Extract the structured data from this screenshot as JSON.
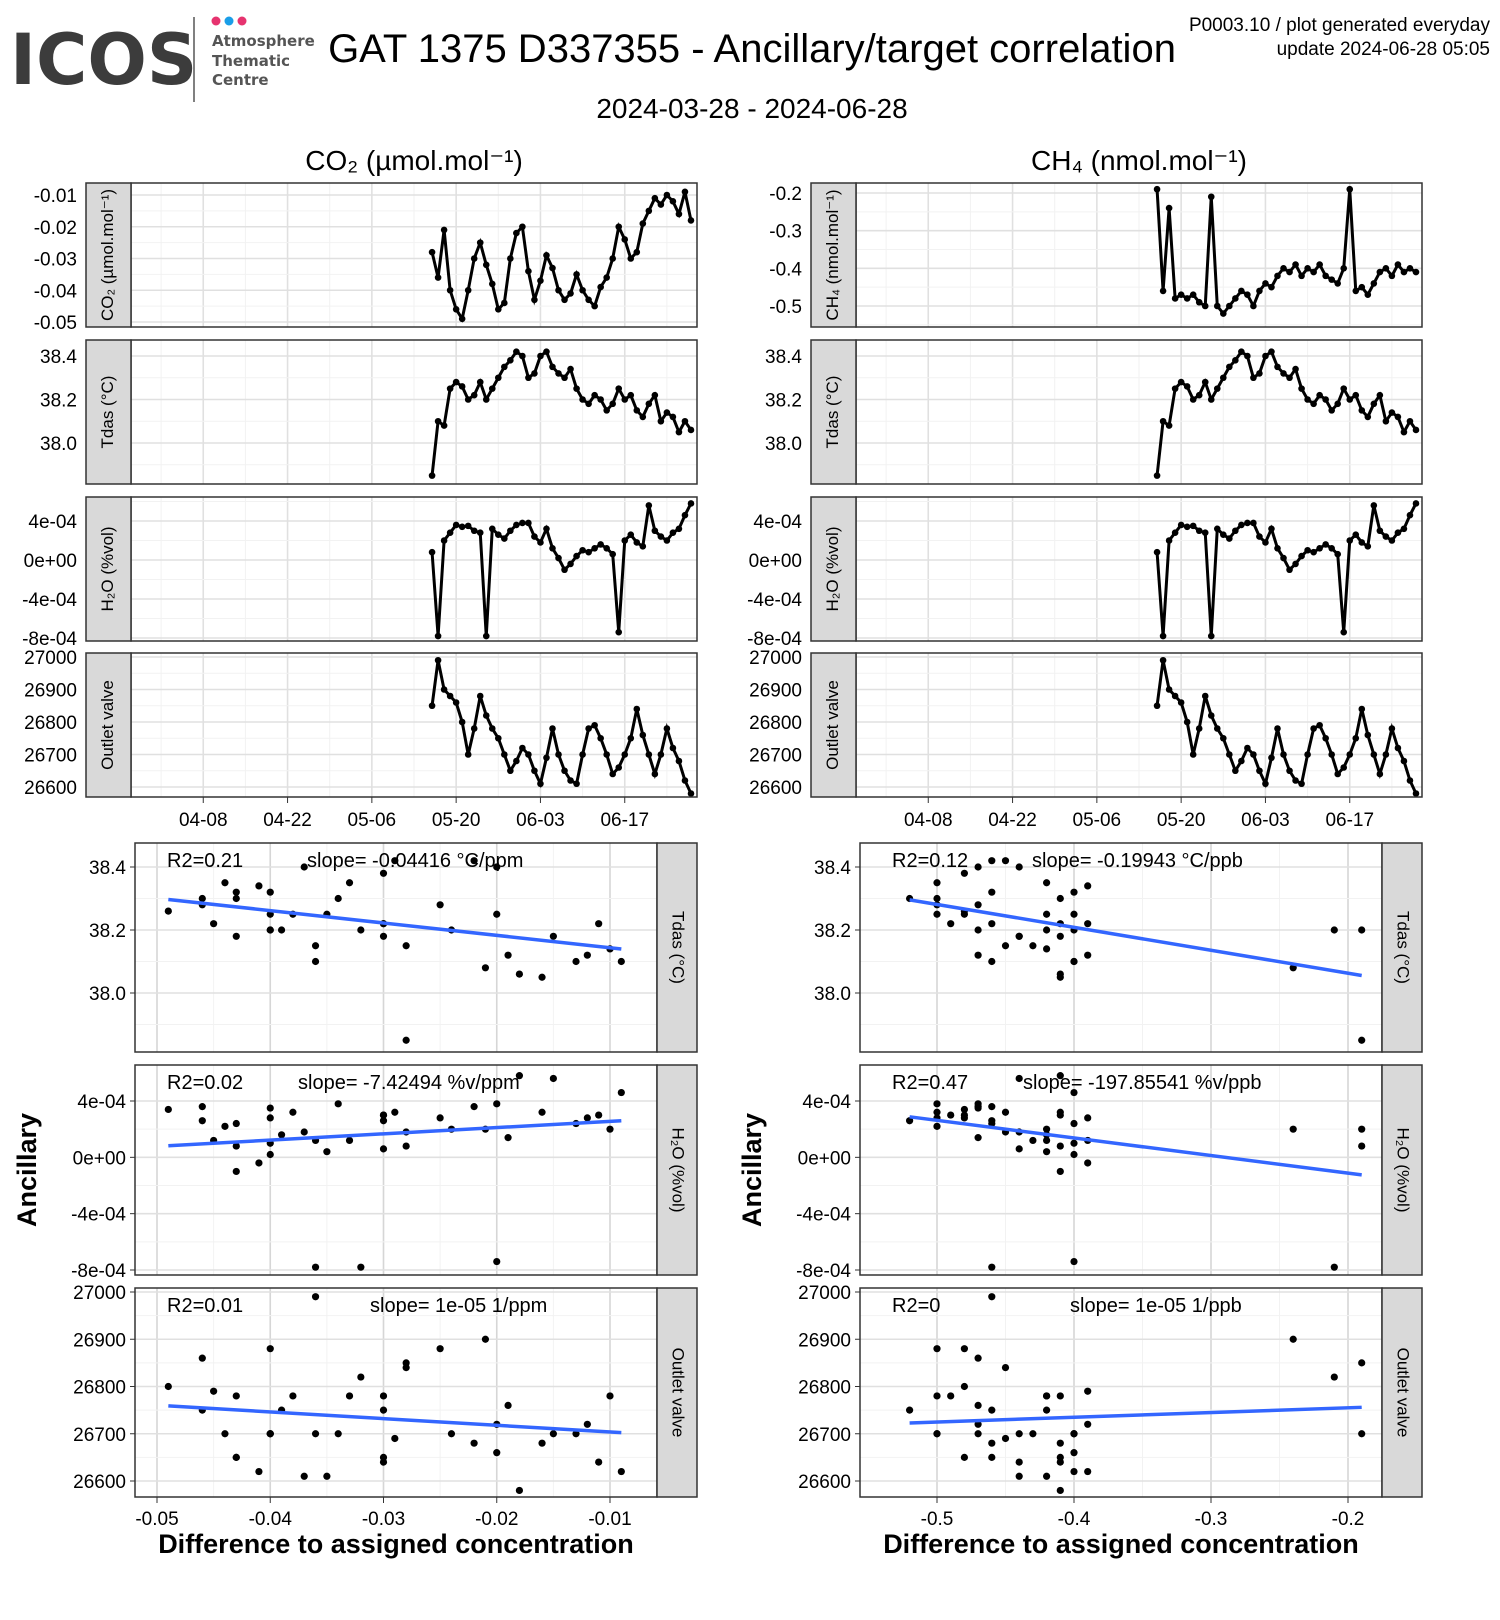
{
  "header": {
    "logo_text": "ICOS",
    "logo_sub": [
      "Atmosphere",
      "Thematic",
      "Centre"
    ],
    "logo_dot_colors": [
      "#e6336f",
      "#1a9ee8",
      "#e6336f"
    ],
    "title": "GAT 1375 D337355 - Ancillary/target correlation",
    "date_range": "2024-03-28 - 2024-06-28",
    "info_line1": "P0003.10 / plot generated everyday",
    "info_line2": "update  2024-06-28 05:05"
  },
  "chart_data": {
    "type": "line+scatter",
    "title": "GAT 1375 D337355 - Ancillary/target correlation",
    "subtitle": "2024-03-28 - 2024-06-28",
    "line_color": "#000000",
    "fit_color": "#3366ff",
    "time_axis": {
      "range": [
        "2024-03-27",
        "2024-06-29"
      ],
      "ticks": [
        "2024-04-08",
        "2024-04-22",
        "2024-05-06",
        "2024-05-20",
        "2024-06-03",
        "2024-06-17"
      ],
      "tick_labels": [
        "04-08",
        "04-22",
        "05-06",
        "05-20",
        "06-03",
        "06-17"
      ]
    },
    "series_start": "2024-05-16",
    "series_step_days": 1,
    "series": {
      "co2": [
        -0.028,
        -0.036,
        -0.021,
        -0.04,
        -0.046,
        -0.049,
        -0.04,
        -0.03,
        -0.025,
        -0.032,
        -0.038,
        -0.046,
        -0.044,
        -0.03,
        -0.022,
        -0.02,
        -0.034,
        -0.043,
        -0.037,
        -0.029,
        -0.033,
        -0.04,
        -0.043,
        -0.041,
        -0.035,
        -0.04,
        -0.043,
        -0.045,
        -0.039,
        -0.036,
        -0.03,
        -0.02,
        -0.024,
        -0.03,
        -0.028,
        -0.019,
        -0.015,
        -0.011,
        -0.013,
        -0.01,
        -0.012,
        -0.016,
        -0.009,
        -0.018
      ],
      "ch4": [
        -0.19,
        -0.46,
        -0.24,
        -0.48,
        -0.47,
        -0.48,
        -0.47,
        -0.49,
        -0.5,
        -0.21,
        -0.5,
        -0.52,
        -0.5,
        -0.48,
        -0.46,
        -0.47,
        -0.5,
        -0.46,
        -0.44,
        -0.45,
        -0.42,
        -0.4,
        -0.41,
        -0.39,
        -0.42,
        -0.4,
        -0.41,
        -0.39,
        -0.42,
        -0.43,
        -0.44,
        -0.4,
        -0.19,
        -0.46,
        -0.45,
        -0.47,
        -0.44,
        -0.41,
        -0.4,
        -0.42,
        -0.39,
        -0.41,
        -0.4,
        -0.41
      ],
      "tdas": [
        37.85,
        38.1,
        38.08,
        38.25,
        38.28,
        38.26,
        38.2,
        38.22,
        38.28,
        38.2,
        38.25,
        38.3,
        38.35,
        38.38,
        38.42,
        38.4,
        38.3,
        38.32,
        38.4,
        38.42,
        38.35,
        38.32,
        38.3,
        38.34,
        38.25,
        38.2,
        38.18,
        38.22,
        38.2,
        38.15,
        38.18,
        38.25,
        38.2,
        38.22,
        38.15,
        38.12,
        38.18,
        38.22,
        38.1,
        38.14,
        38.12,
        38.05,
        38.1,
        38.06
      ],
      "h2o": [
        8e-05,
        -0.00078,
        0.0002,
        0.00028,
        0.00036,
        0.00034,
        0.00035,
        0.0003,
        0.00028,
        -0.00078,
        0.00032,
        0.00026,
        0.00022,
        0.0003,
        0.00036,
        0.00038,
        0.00038,
        0.00024,
        0.00018,
        0.00032,
        0.00012,
        2e-05,
        -0.0001,
        -4e-05,
        4e-05,
        0.0001,
        8e-05,
        0.00012,
        0.00016,
        0.00012,
        6e-05,
        -0.00074,
        0.0002,
        0.00026,
        0.00018,
        0.00014,
        0.00056,
        0.0003,
        0.00024,
        0.0002,
        0.00028,
        0.00032,
        0.00046,
        0.00058
      ],
      "outlet": [
        26850,
        26990,
        26900,
        26880,
        26860,
        26800,
        26700,
        26780,
        26880,
        26820,
        26780,
        26750,
        26700,
        26650,
        26680,
        26720,
        26700,
        26650,
        26610,
        26690,
        26780,
        26700,
        26650,
        26620,
        26610,
        26700,
        26780,
        26790,
        26750,
        26700,
        26640,
        26660,
        26700,
        26750,
        26840,
        26760,
        26700,
        26640,
        26700,
        26780,
        26720,
        26680,
        26620,
        26580
      ]
    },
    "columns": [
      {
        "title": "CO₂ (µmol.mol⁻¹)",
        "target": "co2",
        "xlabel": "Difference to assigned concentration",
        "ylabel": "Ancillary",
        "x_ticks": [
          -0.05,
          -0.04,
          -0.03,
          -0.02,
          -0.01
        ],
        "x_tick_labels": [
          "-0.05",
          "-0.04",
          "-0.03",
          "-0.02",
          "-0.01"
        ],
        "time_panels": [
          {
            "strip": "CO₂ (µmol.mol⁻¹)",
            "var": "co2",
            "ticks": [
              -0.01,
              -0.02,
              -0.03,
              -0.04,
              -0.05
            ],
            "tick_labels": [
              "-0.01",
              "-0.02",
              "-0.03",
              "-0.04",
              "-0.05"
            ]
          },
          {
            "strip": "Tdas (°C)",
            "var": "tdas",
            "ticks": [
              38.4,
              38.2,
              38.0
            ],
            "tick_labels": [
              "38.4",
              "38.2",
              "38.0"
            ]
          },
          {
            "strip": "H₂O (%vol)",
            "var": "h2o",
            "ticks": [
              0.0004,
              0,
              -0.0004,
              -0.0008
            ],
            "tick_labels": [
              "4e-04",
              "0e+00",
              "-4e-04",
              "-8e-04"
            ]
          },
          {
            "strip": "Outlet valve",
            "var": "outlet",
            "ticks": [
              27000,
              26900,
              26800,
              26700,
              26600
            ],
            "tick_labels": [
              "27000",
              "26900",
              "26800",
              "26700",
              "26600"
            ]
          }
        ],
        "scatter_panels": [
          {
            "strip": "Tdas (°C)",
            "var": "tdas",
            "r2": "R2=0.21",
            "slope": "slope= -0.04416 °C/ppm",
            "ticks": [
              38.4,
              38.2,
              38.0
            ],
            "tick_labels": [
              "38.4",
              "38.2",
              "38.0"
            ]
          },
          {
            "strip": "H₂O (%vol)",
            "var": "h2o",
            "r2": "R2=0.02",
            "slope": "slope= -7.42494 %v/ppm",
            "ticks": [
              0.0004,
              0,
              -0.0004,
              -0.0008
            ],
            "tick_labels": [
              "4e-04",
              "0e+00",
              "-4e-04",
              "-8e-04"
            ]
          },
          {
            "strip": "Outlet valve",
            "var": "outlet",
            "r2": "R2=0.01",
            "slope": "slope= 1e-05 1/ppm",
            "ticks": [
              27000,
              26900,
              26800,
              26700,
              26600
            ],
            "tick_labels": [
              "27000",
              "26900",
              "26800",
              "26700",
              "26600"
            ]
          }
        ]
      },
      {
        "title": "CH₄ (nmol.mol⁻¹)",
        "target": "ch4",
        "xlabel": "Difference to assigned concentration",
        "ylabel": "Ancillary",
        "x_ticks": [
          -0.5,
          -0.4,
          -0.3,
          -0.2
        ],
        "x_tick_labels": [
          "-0.5",
          "-0.4",
          "-0.3",
          "-0.2"
        ],
        "time_panels": [
          {
            "strip": "CH₄ (nmol.mol⁻¹)",
            "var": "ch4",
            "ticks": [
              -0.2,
              -0.3,
              -0.4,
              -0.5
            ],
            "tick_labels": [
              "-0.2",
              "-0.3",
              "-0.4",
              "-0.5"
            ]
          },
          {
            "strip": "Tdas (°C)",
            "var": "tdas",
            "ticks": [
              38.4,
              38.2,
              38.0
            ],
            "tick_labels": [
              "38.4",
              "38.2",
              "38.0"
            ]
          },
          {
            "strip": "H₂O (%vol)",
            "var": "h2o",
            "ticks": [
              0.0004,
              0,
              -0.0004,
              -0.0008
            ],
            "tick_labels": [
              "4e-04",
              "0e+00",
              "-4e-04",
              "-8e-04"
            ]
          },
          {
            "strip": "Outlet valve",
            "var": "outlet",
            "ticks": [
              27000,
              26900,
              26800,
              26700,
              26600
            ],
            "tick_labels": [
              "27000",
              "26900",
              "26800",
              "26700",
              "26600"
            ]
          }
        ],
        "scatter_panels": [
          {
            "strip": "Tdas (°C)",
            "var": "tdas",
            "r2": "R2=0.12",
            "slope": "slope= -0.19943 °C/ppb",
            "ticks": [
              38.4,
              38.2,
              38.0
            ],
            "tick_labels": [
              "38.4",
              "38.2",
              "38.0"
            ]
          },
          {
            "strip": "H₂O (%vol)",
            "var": "h2o",
            "r2": "R2=0.47",
            "slope": "slope= -197.85541 %v/ppb",
            "ticks": [
              0.0004,
              0,
              -0.0004,
              -0.0008
            ],
            "tick_labels": [
              "4e-04",
              "0e+00",
              "-4e-04",
              "-8e-04"
            ]
          },
          {
            "strip": "Outlet valve",
            "var": "outlet",
            "r2": "R2=0",
            "slope": "slope= 1e-05 1/ppb",
            "ticks": [
              27000,
              26900,
              26800,
              26700,
              26600
            ],
            "tick_labels": [
              "27000",
              "26900",
              "26800",
              "26700",
              "26600"
            ]
          }
        ]
      }
    ]
  }
}
